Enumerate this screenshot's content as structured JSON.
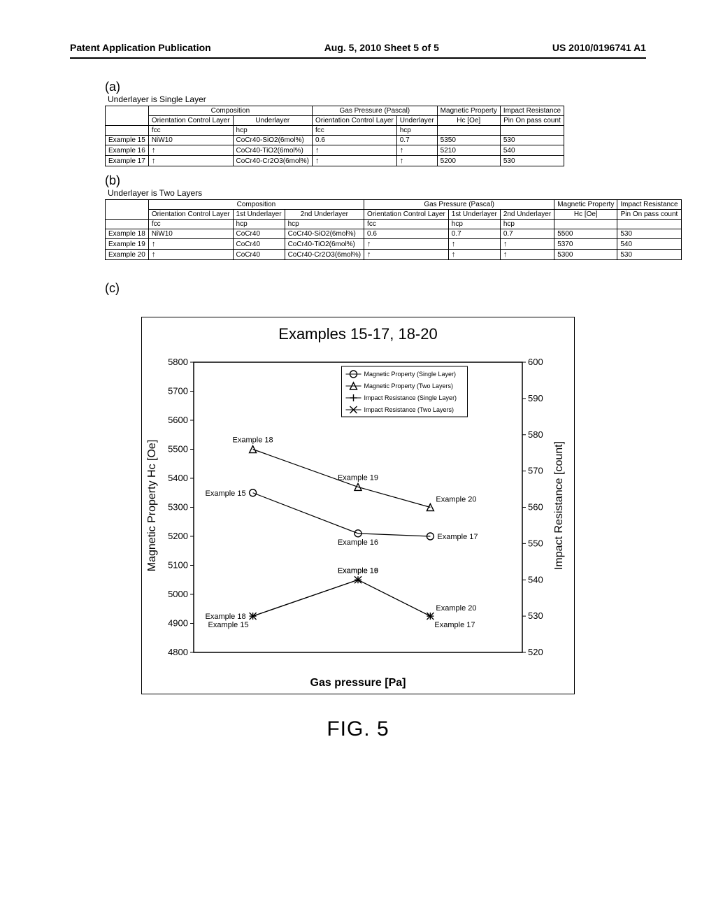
{
  "header": {
    "left": "Patent Application Publication",
    "center": "Aug. 5, 2010  Sheet 5 of 5",
    "right": "US 2010/0196741 A1"
  },
  "sectionA": {
    "label": "(a)",
    "caption": "Underlayer is Single Layer",
    "colGroups": {
      "composition": "Composition",
      "gas": "Gas Pressure (Pascal)",
      "magnetic": "Magnetic Property",
      "impact": "Impact Resistance"
    },
    "cols": {
      "ocl": "Orientation Control Layer",
      "ul": "Underlayer",
      "ocl2": "Orientation Control Layer",
      "ul2": "Underlayer",
      "hc": "Hc [Oe]",
      "pin": "Pin On pass count"
    },
    "structRow": {
      "ocl": "fcc",
      "ul": "hcp",
      "ocl2": "fcc",
      "ul2": "hcp"
    },
    "rows": [
      {
        "name": "Example 15",
        "ocl": "NiW10",
        "ul": "CoCr40-SiO2(6mol%)",
        "ocl2": "0.6",
        "ul2": "0.7",
        "hc": "5350",
        "pin": "530"
      },
      {
        "name": "Example 16",
        "ocl": "↑",
        "ul": "CoCr40-TiO2(6mol%)",
        "ocl2": "↑",
        "ul2": "↑",
        "hc": "5210",
        "pin": "540"
      },
      {
        "name": "Example 17",
        "ocl": "↑",
        "ul": "CoCr40-Cr2O3(6mol%)",
        "ocl2": "↑",
        "ul2": "↑",
        "hc": "5200",
        "pin": "530"
      }
    ]
  },
  "sectionB": {
    "label": "(b)",
    "caption": "Underlayer is Two Layers",
    "colGroups": {
      "composition": "Composition",
      "gas": "Gas Pressure (Pascal)",
      "magnetic": "Magnetic Property",
      "impact": "Impact Resistance"
    },
    "cols": {
      "ocl": "Orientation Control Layer",
      "ul1": "1st Underlayer",
      "ul2": "2nd Underlayer",
      "ocl_g": "Orientation Control Layer",
      "ul1_g": "1st Underlayer",
      "ul2_g": "2nd Underlayer",
      "hc": "Hc [Oe]",
      "pin": "Pin On pass count"
    },
    "structRow": {
      "ocl": "fcc",
      "ul1": "hcp",
      "ul2": "hcp",
      "ocl_g": "fcc",
      "ul1_g": "hcp",
      "ul2_g": "hcp"
    },
    "rows": [
      {
        "name": "Example 18",
        "ocl": "NiW10",
        "ul1": "CoCr40",
        "ul2": "CoCr40-SiO2(6mol%)",
        "ocl_g": "0.6",
        "ul1_g": "0.7",
        "ul2_g": "0.7",
        "hc": "5500",
        "pin": "530"
      },
      {
        "name": "Example 19",
        "ocl": "↑",
        "ul1": "CoCr40",
        "ul2": "CoCr40-TiO2(6mol%)",
        "ocl_g": "↑",
        "ul1_g": "↑",
        "ul2_g": "↑",
        "hc": "5370",
        "pin": "540"
      },
      {
        "name": "Example 20",
        "ocl": "↑",
        "ul1": "CoCr40",
        "ul2": "CoCr40-Cr2O3(6mol%)",
        "ocl_g": "↑",
        "ul1_g": "↑",
        "ul2_g": "↑",
        "hc": "5300",
        "pin": "530"
      }
    ]
  },
  "sectionC": {
    "label": "(c)"
  },
  "chart": {
    "title": "Examples 15-17, 18-20",
    "xlabel": "Gas pressure [Pa]",
    "ylabel_left": "Magnetic Property Hc [Oe]",
    "ylabel_right": "Impact Resistance [count]",
    "left_axis": {
      "min": 4800,
      "max": 5800,
      "step": 100
    },
    "right_axis": {
      "min": 520,
      "max": 600,
      "step": 10
    },
    "bg": "#ffffff",
    "border": "#000000",
    "grid": "#000000",
    "font_title": 22,
    "font_axis": 16,
    "font_tick": 13,
    "font_legend": 9,
    "font_pointlabel": 11,
    "series": {
      "mag_single": {
        "label": "Magnetic Property (Single Layer)",
        "marker": "circle",
        "color": "#000000",
        "points": [
          {
            "axis": "left",
            "x": 0.18,
            "y": 5350,
            "label": "Example 15",
            "lpos": "left"
          },
          {
            "axis": "left",
            "x": 0.5,
            "y": 5210,
            "label": "Example 16",
            "lpos": "below"
          },
          {
            "axis": "left",
            "x": 0.72,
            "y": 5200,
            "label": "Example 17",
            "lpos": "right"
          }
        ]
      },
      "mag_two": {
        "label": "Magnetic Property (Two Layers)",
        "marker": "triangle",
        "color": "#000000",
        "points": [
          {
            "axis": "left",
            "x": 0.18,
            "y": 5500,
            "label": "Example 18",
            "lpos": "above"
          },
          {
            "axis": "left",
            "x": 0.5,
            "y": 5370,
            "label": "Example 19",
            "lpos": "above"
          },
          {
            "axis": "left",
            "x": 0.72,
            "y": 5300,
            "label": "Example 20",
            "lpos": "aboveRight"
          }
        ]
      },
      "imp_single": {
        "label": "Impact Resistance (Single Layer)",
        "marker": "plus",
        "color": "#000000",
        "points": [
          {
            "axis": "right",
            "x": 0.18,
            "y": 530,
            "label": "Example 15",
            "lpos": "belowLeft"
          },
          {
            "axis": "right",
            "x": 0.5,
            "y": 540,
            "label": "Example 16",
            "lpos": "above"
          },
          {
            "axis": "right",
            "x": 0.72,
            "y": 530,
            "label": "Example 17",
            "lpos": "belowRight"
          }
        ]
      },
      "imp_two": {
        "label": "Impact Resistance (Two Layers)",
        "marker": "x",
        "color": "#000000",
        "points": [
          {
            "axis": "right",
            "x": 0.18,
            "y": 530,
            "label": "Example 18",
            "lpos": "left"
          },
          {
            "axis": "right",
            "x": 0.5,
            "y": 540,
            "label": "Example 19",
            "lpos": "above"
          },
          {
            "axis": "right",
            "x": 0.72,
            "y": 530,
            "label": "Example 20",
            "lpos": "aboveRight"
          }
        ]
      }
    }
  },
  "figLabel": "FIG. 5"
}
